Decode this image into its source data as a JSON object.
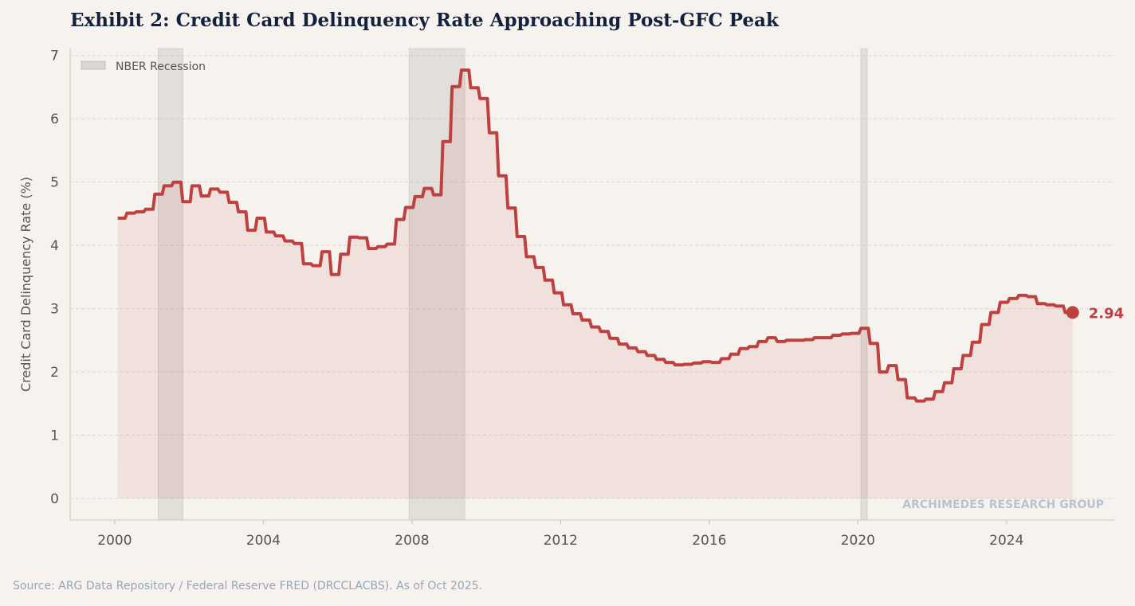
{
  "chart_data": {
    "type": "line",
    "title": "Exhibit 2: Credit Card Delinquency Rate Approaching Post-GFC Peak",
    "ylabel": "Credit Card Delinquency Rate (%)",
    "xlabel": "",
    "xlim": [
      1998.8,
      2026.9
    ],
    "ylim": [
      -0.34,
      7.11
    ],
    "x_ticks": [
      2000,
      2004,
      2008,
      2012,
      2016,
      2020,
      2024
    ],
    "y_ticks": [
      0,
      1,
      2,
      3,
      4,
      5,
      6,
      7
    ],
    "grid": "horizontal dashed",
    "legend": {
      "placement": "top-left",
      "entries": [
        "NBER Recession"
      ]
    },
    "recessions": [
      [
        2001.17,
        2001.83
      ],
      [
        2007.92,
        2009.42
      ],
      [
        2020.08,
        2020.25
      ]
    ],
    "series": [
      {
        "start": "2000 Q1",
        "frequency": "quarterly",
        "color": "#bf4040",
        "values": [
          4.43,
          4.51,
          4.53,
          4.57,
          4.81,
          4.94,
          5.0,
          4.69,
          4.94,
          4.78,
          4.89,
          4.84,
          4.68,
          4.53,
          4.24,
          4.43,
          4.21,
          4.15,
          4.07,
          4.03,
          3.71,
          3.68,
          3.9,
          3.54,
          3.86,
          4.13,
          4.12,
          3.95,
          3.98,
          4.02,
          4.41,
          4.6,
          4.77,
          4.9,
          4.8,
          5.64,
          6.51,
          6.77,
          6.49,
          6.32,
          5.78,
          5.1,
          4.59,
          4.14,
          3.82,
          3.65,
          3.45,
          3.25,
          3.06,
          2.92,
          2.82,
          2.71,
          2.64,
          2.53,
          2.44,
          2.38,
          2.32,
          2.26,
          2.2,
          2.15,
          2.11,
          2.12,
          2.14,
          2.16,
          2.15,
          2.21,
          2.28,
          2.37,
          2.4,
          2.48,
          2.54,
          2.48,
          2.5,
          2.5,
          2.51,
          2.54,
          2.54,
          2.58,
          2.6,
          2.61,
          2.69,
          2.45,
          2.0,
          2.1,
          1.88,
          1.59,
          1.54,
          1.57,
          1.69,
          1.83,
          2.05,
          2.26,
          2.47,
          2.75,
          2.94,
          3.1,
          3.16,
          3.21,
          3.19,
          3.08,
          3.06,
          3.04,
          2.94
        ]
      }
    ],
    "last_value_label": "2.94",
    "watermark": "ARCHIMEDES RESEARCH GROUP"
  },
  "source": "Source: ARG Data Repository / Federal Reserve FRED (DRCCLACBS). As of Oct 2025."
}
